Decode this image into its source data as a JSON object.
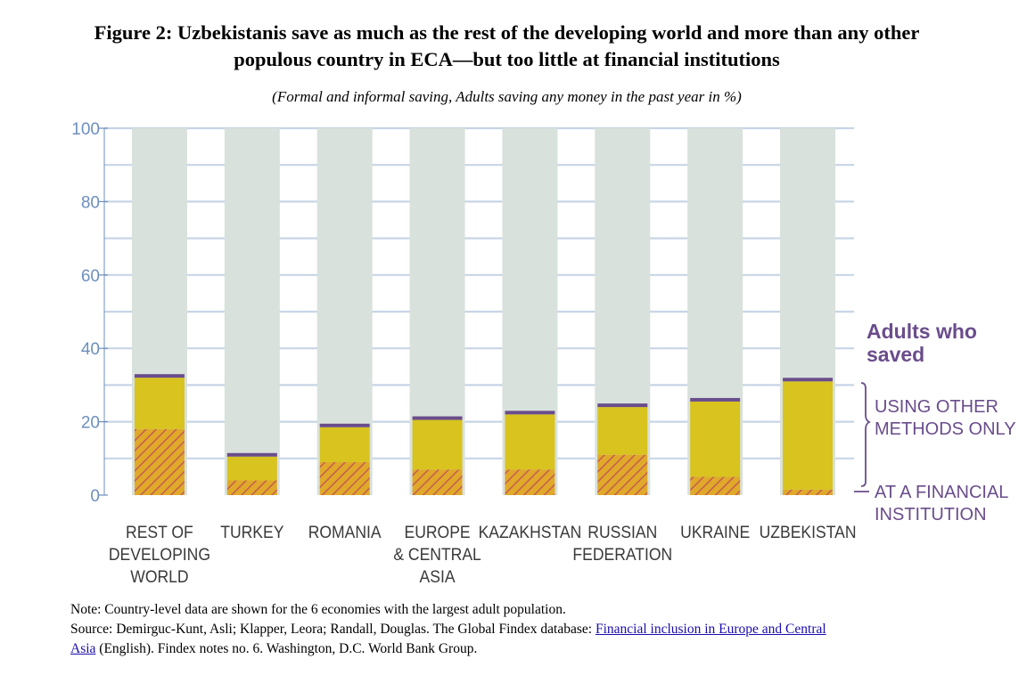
{
  "title_line1": "Figure 2: Uzbekistanis save as much as the rest of the developing world and more than any other",
  "title_line2": "populous country in ECA—but too little at financial institutions",
  "subtitle": "(Formal and informal saving, Adults saving any money in the past year in %)",
  "legend": {
    "heading_line1": "Adults who",
    "heading_line2": "saved",
    "other_line1": "USING OTHER",
    "other_line2": "METHODS ONLY",
    "financial_line1": "AT A FINANCIAL",
    "financial_line2": "INSTITUTION"
  },
  "notes": {
    "note": "Note: Country-level data are shown for the 6 economies with the largest adult population.",
    "source_prefix": "Source: Demirguc-Kunt, Asli; Klapper, Leora; Randall, Douglas. The Global Findex database: ",
    "link_part1": "Financial inclusion in Europe and Central",
    "link_part2": "Asia",
    "source_suffix": " (English). Findex notes no. 6. Washington, D.C.  World Bank Group."
  },
  "chart_data": {
    "type": "bar",
    "stacked": true,
    "ylim": [
      0,
      100
    ],
    "yticks": [
      0,
      20,
      40,
      60,
      80,
      100
    ],
    "grid": true,
    "categories": [
      [
        "REST OF",
        "DEVELOPING",
        "WORLD"
      ],
      [
        "TURKEY"
      ],
      [
        "ROMANIA"
      ],
      [
        "EUROPE",
        "& CENTRAL",
        "ASIA"
      ],
      [
        "KAZAKHSTAN"
      ],
      [
        "RUSSIAN",
        "FEDERATION"
      ],
      [
        "UKRAINE"
      ],
      [
        "UZBEKISTAN"
      ]
    ],
    "series": [
      {
        "name": "AT A FINANCIAL INSTITUTION",
        "values": [
          18,
          4,
          9,
          7,
          7,
          11,
          5,
          1.5
        ]
      },
      {
        "name": "USING OTHER METHODS ONLY",
        "values": [
          14,
          6.5,
          9.5,
          13.5,
          15,
          13,
          20.5,
          29.5
        ]
      }
    ],
    "colors": {
      "background_column": "#d9e1dc",
      "grid": "#c7d5e6",
      "axis": "#6d8fbd",
      "financial": "#f0b400",
      "financial_hatch": "#c9604f",
      "other": "#d8c31f",
      "total_cap": "#6a4d8c",
      "legend_text": "#6a4d8c"
    }
  }
}
